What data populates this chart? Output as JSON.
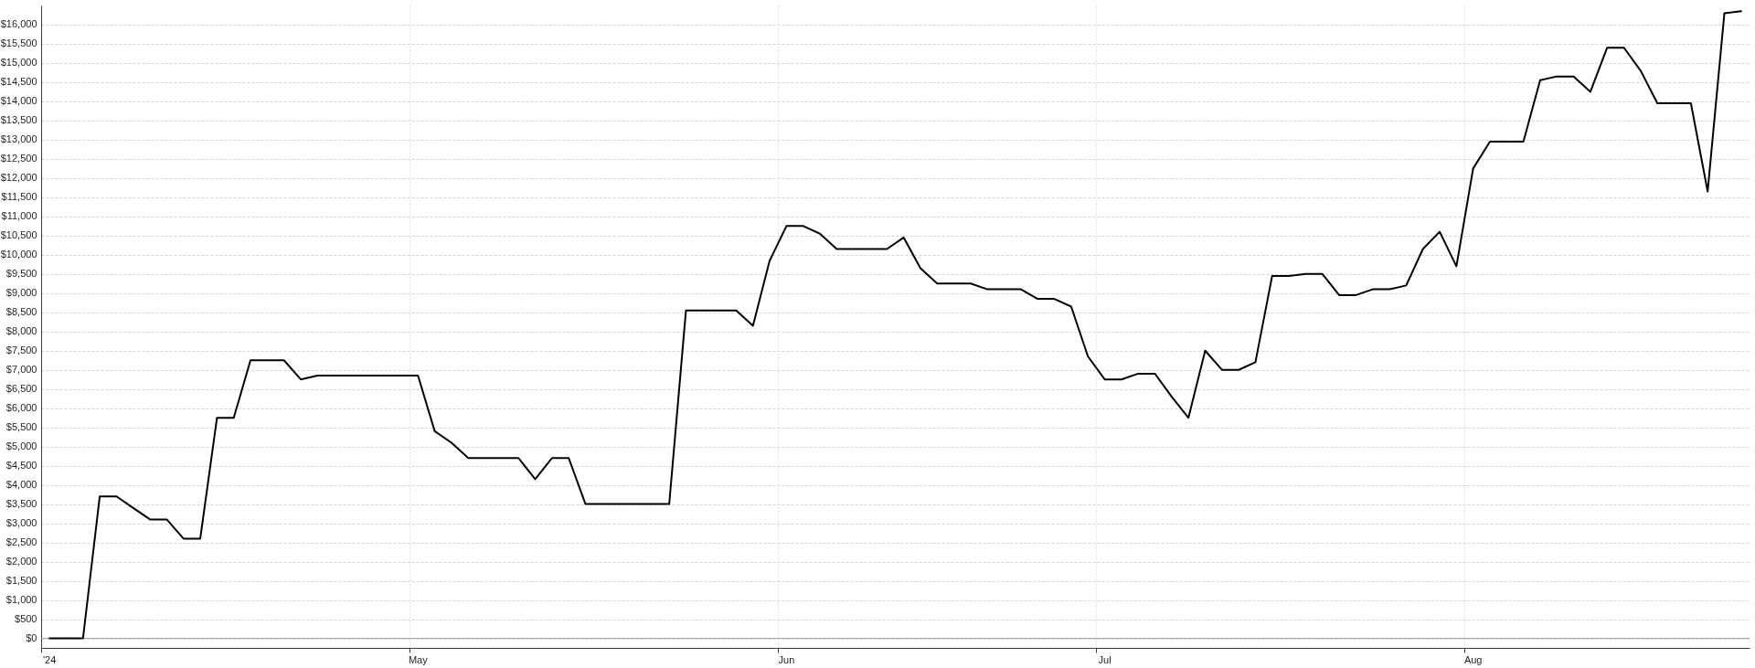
{
  "chart_data": {
    "type": "line",
    "categories": [
      "'24",
      null,
      null,
      null,
      null,
      null,
      null,
      null,
      null,
      null,
      null,
      null,
      null,
      null,
      null,
      null,
      null,
      null,
      null,
      null,
      null,
      null,
      "May",
      null,
      null,
      null,
      null,
      null,
      null,
      null,
      null,
      null,
      null,
      null,
      null,
      null,
      null,
      null,
      null,
      null,
      null,
      null,
      null,
      null,
      "Jun",
      null,
      null,
      null,
      null,
      null,
      null,
      null,
      null,
      null,
      null,
      null,
      null,
      null,
      null,
      null,
      null,
      null,
      null,
      "Jul",
      null,
      null,
      null,
      null,
      null,
      null,
      null,
      null,
      null,
      null,
      null,
      null,
      null,
      null,
      null,
      null,
      null,
      null,
      null,
      null,
      null,
      "Aug",
      null,
      null,
      null,
      null,
      null,
      null,
      null,
      null,
      null,
      null,
      null,
      null,
      null,
      null,
      null,
      null
    ],
    "series": [
      {
        "color": "#000000",
        "values": [
          0,
          0,
          0,
          3700,
          3700,
          3400,
          3100,
          3100,
          2600,
          2600,
          5750,
          5750,
          7250,
          7250,
          7250,
          6750,
          6850,
          6850,
          6850,
          6850,
          6850,
          6850,
          6850,
          5400,
          5100,
          4700,
          4700,
          4700,
          4700,
          4150,
          4700,
          4700,
          3500,
          3500,
          3500,
          3500,
          3500,
          3500,
          8550,
          8550,
          8550,
          8550,
          8150,
          9850,
          10750,
          10750,
          10550,
          10150,
          10150,
          10150,
          10150,
          10450,
          9650,
          9250,
          9250,
          9250,
          9100,
          9100,
          9100,
          8850,
          8850,
          8650,
          7350,
          6750,
          6750,
          6900,
          6900,
          6300,
          5750,
          7500,
          7000,
          7000,
          7200,
          9450,
          9450,
          9500,
          9500,
          8950,
          8950,
          9100,
          9100,
          9200,
          10150,
          10600,
          9700,
          12250,
          12950,
          12950,
          12950,
          14550,
          14650,
          14650,
          14250,
          15400,
          15400,
          14800,
          13950,
          13950,
          13950,
          11650,
          16300,
          16350
        ]
      }
    ],
    "ylim": [
      -250,
      16500
    ],
    "yticks": [
      {
        "value": 0,
        "label": "$0"
      },
      {
        "value": 500,
        "label": "$500"
      },
      {
        "value": 1000,
        "label": "$1,000"
      },
      {
        "value": 1500,
        "label": "$1,500"
      },
      {
        "value": 2000,
        "label": "$2,000"
      },
      {
        "value": 2500,
        "label": "$2,500"
      },
      {
        "value": 3000,
        "label": "$3,000"
      },
      {
        "value": 3500,
        "label": "$3,500"
      },
      {
        "value": 4000,
        "label": "$4,000"
      },
      {
        "value": 4500,
        "label": "$4,500"
      },
      {
        "value": 5000,
        "label": "$5,000"
      },
      {
        "value": 5500,
        "label": "$5,500"
      },
      {
        "value": 6000,
        "label": "$6,000"
      },
      {
        "value": 6500,
        "label": "$6,500"
      },
      {
        "value": 7000,
        "label": "$7,000"
      },
      {
        "value": 7500,
        "label": "$7,500"
      },
      {
        "value": 8000,
        "label": "$8,000"
      },
      {
        "value": 8500,
        "label": "$8,500"
      },
      {
        "value": 9000,
        "label": "$9,000"
      },
      {
        "value": 9500,
        "label": "$9,500"
      },
      {
        "value": 10000,
        "label": "$10,000"
      },
      {
        "value": 10500,
        "label": "$10,500"
      },
      {
        "value": 11000,
        "label": "$11,000"
      },
      {
        "value": 11500,
        "label": "$11,500"
      },
      {
        "value": 12000,
        "label": "$12,000"
      },
      {
        "value": 12500,
        "label": "$12,500"
      },
      {
        "value": 13000,
        "label": "$13,000"
      },
      {
        "value": 13500,
        "label": "$13,500"
      },
      {
        "value": 14000,
        "label": "$14,000"
      },
      {
        "value": 14500,
        "label": "$14,500"
      },
      {
        "value": 15000,
        "label": "$15,000"
      },
      {
        "value": 15500,
        "label": "$15,500"
      },
      {
        "value": 16000,
        "label": "$16,000"
      }
    ],
    "ref_lines": [
      {
        "axis": "y",
        "value": 0,
        "color": "#a6a6a6"
      }
    ],
    "grid": true,
    "line_style": "solid"
  }
}
